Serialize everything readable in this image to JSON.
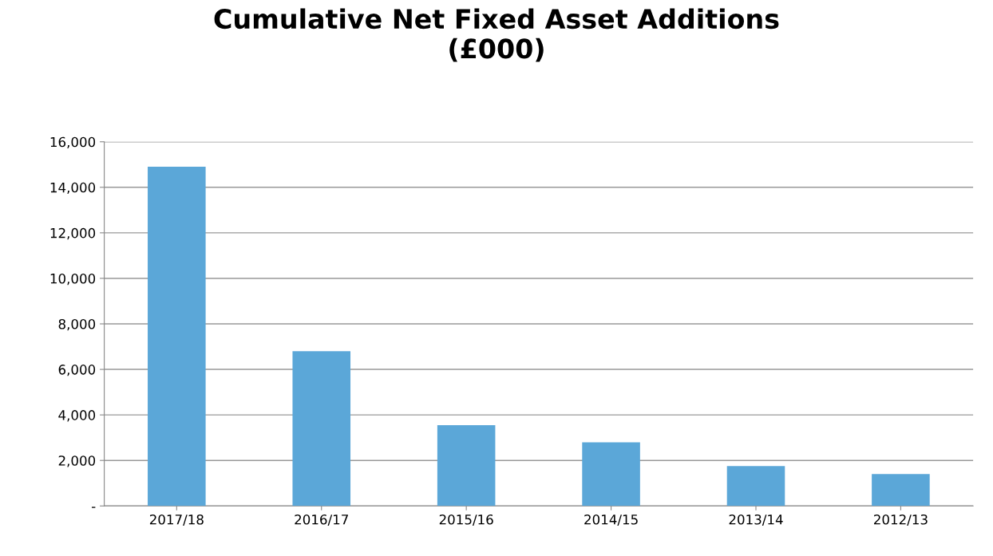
{
  "chart_data": {
    "type": "bar",
    "title": "Cumulative Net Fixed Asset Additions\n(£000)",
    "categories": [
      "2017/18",
      "2016/17",
      "2015/16",
      "2014/15",
      "2013/14",
      "2012/13"
    ],
    "values": [
      14900,
      6800,
      3550,
      2800,
      1750,
      1400
    ],
    "color": "#5ba7d8",
    "ylim": [
      0,
      16000
    ],
    "yticks": [
      {
        "value": 0,
        "label": "-"
      },
      {
        "value": 2000,
        "label": "2,000"
      },
      {
        "value": 4000,
        "label": "4,000"
      },
      {
        "value": 6000,
        "label": "6,000"
      },
      {
        "value": 8000,
        "label": "8,000"
      },
      {
        "value": 10000,
        "label": "10,000"
      },
      {
        "value": 12000,
        "label": "12,000"
      },
      {
        "value": 14000,
        "label": "14,000"
      },
      {
        "value": 16000,
        "label": "16,000"
      }
    ],
    "grid": "y",
    "legend": false
  }
}
